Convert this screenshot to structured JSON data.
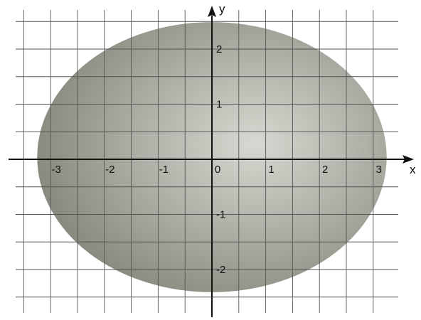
{
  "diagram": {
    "type": "coordinate-grid-with-ellipse",
    "x_axis": {
      "label": "x",
      "tick_labels": [
        {
          "value": -3,
          "text": "-3"
        },
        {
          "value": -2,
          "text": "-2"
        },
        {
          "value": -1,
          "text": "-1"
        },
        {
          "value": 0,
          "text": "0"
        },
        {
          "value": 1,
          "text": "1"
        },
        {
          "value": 2,
          "text": "2"
        },
        {
          "value": 3,
          "text": "3"
        }
      ]
    },
    "y_axis": {
      "label": "y",
      "tick_labels": [
        {
          "value": 2,
          "text": "2"
        },
        {
          "value": 1,
          "text": "1"
        },
        {
          "value": -1,
          "text": "-1"
        },
        {
          "value": -2,
          "text": "-2"
        }
      ]
    },
    "grid": {
      "visible": true,
      "step": 0.5
    },
    "ellipse": {
      "semi_axis_x": 3.25,
      "semi_axis_y": 2.45
    },
    "colors": {
      "grid": "#555555",
      "axes": "#111111",
      "ellipse_fill_dark": "#8a8a80",
      "ellipse_fill_light": "#d8d8d2"
    }
  }
}
